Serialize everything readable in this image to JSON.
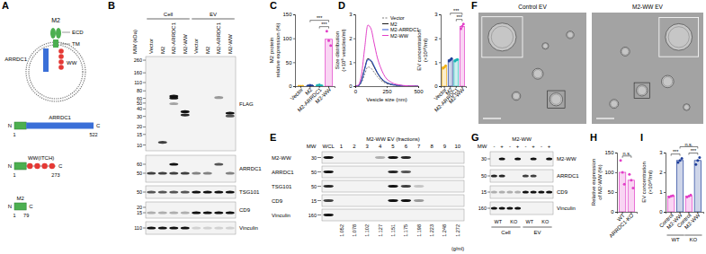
{
  "panel_labels": [
    "A",
    "B",
    "C",
    "D",
    "E",
    "F",
    "G",
    "H",
    "I"
  ],
  "diagram": {
    "protein": "M2",
    "ecd": "ECD",
    "tm": "TM",
    "adaptor": "ARRDC1",
    "ww": "WW",
    "n_term": "N",
    "c_term": "C",
    "constructs": [
      {
        "name": "ARRDC1",
        "start": 1,
        "end": 522
      },
      {
        "name": "WW(ITCH)",
        "start": 1,
        "end": 273
      },
      {
        "name": "M2",
        "start": 1,
        "end": 79
      }
    ]
  },
  "blot_b": {
    "mw_label": "MW (kDa)",
    "groups": [
      "Cell",
      "EV"
    ],
    "lanes": [
      "Vector",
      "M2",
      "M2-ARRDC1",
      "M2-WW",
      "Vector",
      "M2",
      "M2-ARRDC1",
      "M2-WW"
    ],
    "strips": [
      {
        "antibody": "FLAG",
        "mw": [
          260,
          160,
          110,
          80,
          60,
          50,
          40,
          30,
          20,
          15,
          10
        ]
      },
      {
        "antibody": "ARRDC1",
        "mw": [
          60,
          50
        ]
      },
      {
        "antibody": "TSG101",
        "mw": [
          50
        ]
      },
      {
        "antibody": "CD9",
        "mw": [
          20,
          15
        ]
      },
      {
        "antibody": "Vinculin",
        "mw": [
          110
        ]
      }
    ]
  },
  "blot_e": {
    "title": "M2-WW EV (fractions)",
    "mw_label": "MW",
    "lanes": [
      "WCL",
      "1",
      "2",
      "3",
      "4",
      "5",
      "6",
      "7",
      "8",
      "9",
      "10"
    ],
    "densities": [
      1.052,
      1.078,
      1.102,
      1.127,
      1.151,
      1.175,
      1.198,
      1.223,
      1.248,
      1.272
    ],
    "density_unit": "(g/ml)",
    "strips": [
      {
        "antibody": "M2-WW",
        "mw": [
          30
        ]
      },
      {
        "antibody": "ARRDC1",
        "mw": [
          50
        ]
      },
      {
        "antibody": "TSG101",
        "mw": [
          50
        ]
      },
      {
        "antibody": "CD9",
        "mw": [
          15
        ]
      },
      {
        "antibody": "Vinculin",
        "mw": [
          160
        ]
      }
    ]
  },
  "em_images": [
    {
      "label": "Control EV"
    },
    {
      "label": "M2-WW EV"
    }
  ],
  "blot_g": {
    "title": "M2-WW",
    "mw_label": "MW",
    "treatment": [
      "-",
      "+",
      "-",
      "+",
      "-",
      "+",
      "-",
      "+"
    ],
    "genotypes": [
      "WT",
      "KO",
      "WT",
      "KO"
    ],
    "groups": [
      "Cell",
      "EV"
    ],
    "strips": [
      {
        "antibody": "M2-WW",
        "mw": [
          30
        ]
      },
      {
        "antibody": "ARRDC1",
        "mw": [
          50
        ]
      },
      {
        "antibody": "CD9",
        "mw": [
          15
        ]
      },
      {
        "antibody": "Vinculin",
        "mw": [
          160
        ]
      }
    ]
  },
  "chart_data": [
    {
      "type": "bar",
      "y_label": [
        "M2 protein",
        "relative expression (%)"
      ],
      "categories": [
        "Vector",
        "M2",
        "M2-ARRDC1",
        "M2-WW"
      ],
      "values": [
        0,
        1,
        2,
        98
      ],
      "points": [
        [
          0,
          0,
          0
        ],
        [
          1,
          2,
          1
        ],
        [
          2,
          3,
          1
        ],
        [
          115,
          95,
          85
        ]
      ],
      "colors": [
        "#f0b21a",
        "#1f3f9a",
        "#18b4b4",
        "#e23fc8"
      ],
      "ylim": [
        0,
        150
      ],
      "yticks": [
        0,
        50,
        100,
        150
      ],
      "significance": [
        {
          "pair": [
            2,
            3
          ],
          "text": "***"
        },
        {
          "pair": [
            1,
            3
          ],
          "text": "***"
        }
      ]
    },
    {
      "type": "line",
      "x_label": "Vesicle size (nm)",
      "y_label": [
        "Size distribution",
        "(×10⁸ vesicles/ml)"
      ],
      "x": [
        0,
        25,
        50,
        75,
        100,
        125,
        150,
        175,
        200,
        225,
        250,
        275,
        300,
        325,
        350,
        375,
        400,
        425,
        450,
        475,
        500
      ],
      "series": [
        {
          "name": "Vector",
          "color": "#7a7a7a",
          "line_style": "dashed",
          "values": [
            0,
            0.01,
            0.15,
            0.5,
            0.8,
            0.75,
            0.58,
            0.4,
            0.26,
            0.17,
            0.1,
            0.07,
            0.04,
            0.03,
            0.02,
            0.01,
            0.01,
            0,
            0,
            0,
            0
          ]
        },
        {
          "name": "M2",
          "color": "#1a1a1a",
          "line_style": "solid",
          "values": [
            0,
            0.02,
            0.25,
            0.75,
            1.15,
            1.05,
            0.8,
            0.55,
            0.35,
            0.22,
            0.14,
            0.09,
            0.06,
            0.04,
            0.03,
            0.02,
            0.01,
            0.01,
            0,
            0,
            0
          ]
        },
        {
          "name": "M2-ARRDC1",
          "color": "#2b56d6",
          "line_style": "solid",
          "values": [
            0,
            0.02,
            0.22,
            0.7,
            1.1,
            1.08,
            0.85,
            0.58,
            0.38,
            0.24,
            0.15,
            0.1,
            0.06,
            0.04,
            0.03,
            0.02,
            0.01,
            0.01,
            0,
            0,
            0
          ]
        },
        {
          "name": "M2-WW",
          "color": "#e23fc8",
          "line_style": "solid",
          "values": [
            0,
            0.05,
            0.5,
            1.6,
            2.55,
            2.4,
            1.8,
            1.2,
            0.8,
            0.5,
            0.3,
            0.2,
            0.12,
            0.08,
            0.05,
            0.03,
            0.02,
            0.01,
            0.01,
            0,
            0
          ]
        }
      ],
      "xlim": [
        0,
        500
      ],
      "xticks": [
        0,
        250,
        500
      ],
      "ylim": [
        0,
        3
      ],
      "yticks": [
        0,
        1,
        2,
        3
      ],
      "legend": "upper right"
    },
    {
      "type": "bar",
      "y_label": [
        "EV concentration",
        "(×10¹⁰/ml)"
      ],
      "categories": [
        "Vector",
        "M2",
        "M2-ARRDC1",
        "M2-WW"
      ],
      "values": [
        0.8,
        1.1,
        1.1,
        2.5
      ],
      "points": [
        [
          0.75,
          0.8,
          0.85
        ],
        [
          1.05,
          1.1,
          1.15
        ],
        [
          1.05,
          1.1,
          1.12
        ],
        [
          2.4,
          2.5,
          2.6
        ]
      ],
      "colors": [
        "#f0b21a",
        "#1f3f9a",
        "#18b4b4",
        "#e23fc8"
      ],
      "ylim": [
        0,
        3
      ],
      "yticks": [
        0,
        1,
        2,
        3
      ],
      "significance": [
        {
          "pair": [
            2,
            3
          ],
          "text": "***"
        },
        {
          "pair": [
            1,
            3
          ],
          "text": "***"
        }
      ]
    },
    {
      "type": "bar",
      "y_label": [
        "Relative expression",
        "of M2-WW (%)"
      ],
      "categories": [
        "WT",
        "ARRDC1-KO"
      ],
      "values": [
        100,
        80
      ],
      "points": [
        [
          130,
          100,
          70
        ],
        [
          95,
          80,
          60
        ]
      ],
      "colors": [
        "#e23fc8",
        "#e23fc8"
      ],
      "ylim": [
        0,
        150
      ],
      "yticks": [
        0,
        50,
        100,
        150
      ],
      "significance": [
        {
          "pair": [
            0,
            1
          ],
          "text": "n.s."
        }
      ]
    },
    {
      "type": "bar",
      "y_label": [
        "EV concentration",
        "(×10¹⁰/ml)"
      ],
      "categories": [
        "Control",
        "M2-WW",
        "Control",
        "M2-WW"
      ],
      "values": [
        0.8,
        2.6,
        0.8,
        2.6
      ],
      "points": [
        [
          0.75,
          0.8,
          0.82
        ],
        [
          2.5,
          2.6,
          2.7
        ],
        [
          0.75,
          0.8,
          0.85
        ],
        [
          2.4,
          2.6,
          2.75
        ]
      ],
      "colors": [
        "#e23fc8",
        "#1f3f9a",
        "#e23fc8",
        "#1f3f9a"
      ],
      "groups": [
        {
          "label": "WT",
          "members": [
            0,
            1
          ]
        },
        {
          "label": "KO",
          "members": [
            2,
            3
          ]
        }
      ],
      "ylim": [
        0,
        3
      ],
      "yticks": [
        0,
        1,
        2,
        3
      ],
      "significance": [
        {
          "pair": [
            0,
            1
          ],
          "text": "***"
        },
        {
          "pair": [
            2,
            3
          ],
          "text": "***"
        },
        {
          "pair": [
            1,
            3
          ],
          "text": "n.s."
        }
      ]
    }
  ]
}
